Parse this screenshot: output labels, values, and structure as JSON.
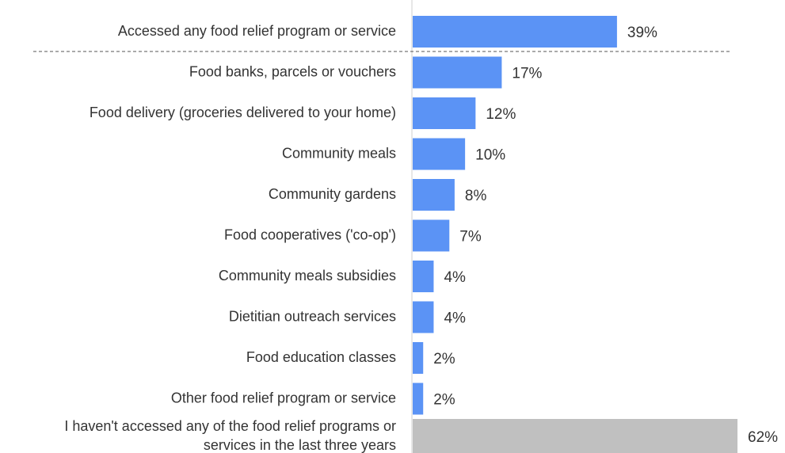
{
  "chart_data": {
    "type": "bar",
    "orientation": "horizontal",
    "categories": [
      "Accessed any food relief program or service",
      "Food banks, parcels or vouchers",
      "Food delivery (groceries delivered to your home)",
      "Community meals",
      "Community gardens",
      "Food cooperatives ('co-op')",
      "Community meals subsidies",
      "Dietitian outreach services",
      "Food education classes",
      "Other food relief program or service",
      "I haven't accessed any of the food relief programs or services in the last three years"
    ],
    "values": [
      39,
      17,
      12,
      10,
      8,
      7,
      4,
      4,
      2,
      2,
      62
    ],
    "value_labels": [
      "39%",
      "17%",
      "12%",
      "10%",
      "8%",
      "7%",
      "4%",
      "4%",
      "2%",
      "2%",
      "62%"
    ],
    "label_lines": [
      [
        "Accessed any food relief program or service"
      ],
      [
        "Food banks, parcels or vouchers"
      ],
      [
        "Food delivery (groceries delivered to your home)"
      ],
      [
        "Community meals"
      ],
      [
        "Community gardens"
      ],
      [
        "Food cooperatives ('co-op')"
      ],
      [
        "Community meals subsidies"
      ],
      [
        "Dietitian outreach services"
      ],
      [
        "Food education classes"
      ],
      [
        "Other food relief program or service"
      ],
      [
        "I haven't accessed any of the food relief programs or",
        "services in the last three years"
      ]
    ],
    "bar_colors": [
      "#5b93f5",
      "#5b93f5",
      "#5b93f5",
      "#5b93f5",
      "#5b93f5",
      "#5b93f5",
      "#5b93f5",
      "#5b93f5",
      "#5b93f5",
      "#5b93f5",
      "#c0c0c0"
    ],
    "xlim": [
      0,
      62
    ],
    "grid": false,
    "legend": "none",
    "separator": "dashed line below first bar",
    "title": "",
    "xlabel": "",
    "ylabel": ""
  }
}
